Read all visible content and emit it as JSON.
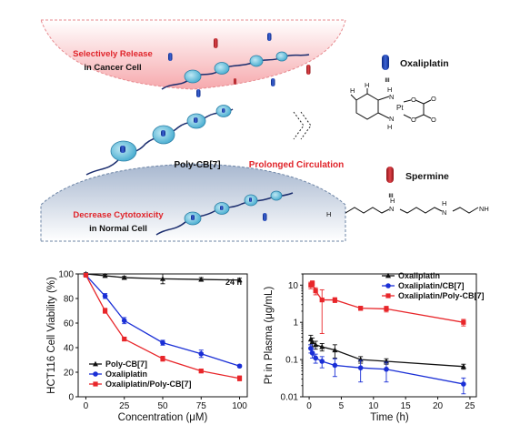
{
  "scheme": {
    "selective_release_line1": "Selectively Release",
    "selective_release_line2": "in Cancer Cell",
    "decrease_cytotoxicity_line1": "Decrease Cytotoxicity",
    "decrease_cytotoxicity_line2": "in Normal Cell",
    "poly_label": "Poly-CB[7]",
    "prolonged": "Prolonged Circulation",
    "oxaliplatin_label": "Oxaliplatin",
    "spermine_label": "Spermine",
    "equiv_symbol": "III",
    "pt": "Pt",
    "nh2": "NH",
    "h": "H",
    "o": "O",
    "n_h": "H",
    "n": "N",
    "h2n": "H",
    "colors": {
      "cancer": "#f7b6b9",
      "normal": "#b9c6d8",
      "oxali": "#1d3fa8",
      "spermine": "#c9262c",
      "cb7": "#6fc1de"
    }
  },
  "chart_data": [
    {
      "type": "line",
      "annotation": "24 h",
      "xlabel": "Concentration (μM)",
      "ylabel": "HCT116 Cell Viability (%)",
      "xlim": [
        -5,
        105
      ],
      "ylim": [
        0,
        100
      ],
      "xticks": [
        "0",
        "25",
        "50",
        "75",
        "100"
      ],
      "yticks": [
        "0",
        "20",
        "40",
        "60",
        "80",
        "100"
      ],
      "legend": "bottom-left",
      "series": [
        {
          "name": "Poly-CB[7]",
          "color": "#111111",
          "marker": "triangle",
          "x": [
            0,
            12.5,
            25,
            50,
            75,
            100
          ],
          "y": [
            100,
            98.5,
            97,
            96,
            95.5,
            95
          ],
          "err": [
            1,
            1,
            1,
            4,
            1.5,
            1.5
          ]
        },
        {
          "name": "Oxaliplatin",
          "color": "#1a2fd6",
          "marker": "circle",
          "x": [
            0,
            12.5,
            25,
            50,
            75,
            100
          ],
          "y": [
            99,
            82,
            62,
            44,
            35,
            25
          ],
          "err": [
            1,
            2,
            2.5,
            2,
            3,
            1
          ]
        },
        {
          "name": "Oxaliplatin/Poly-CB[7]",
          "color": "#e8262a",
          "marker": "square",
          "x": [
            0,
            12.5,
            25,
            50,
            75,
            100
          ],
          "y": [
            99,
            70,
            47,
            31,
            21,
            15
          ],
          "err": [
            1,
            2,
            1.5,
            2,
            1.5,
            2
          ]
        }
      ]
    },
    {
      "type": "line",
      "xlabel": "Time (h)",
      "ylabel": "Pt in Plasma (μg/mL)",
      "xscale": "linear",
      "yscale": "log",
      "xlim": [
        -1,
        26
      ],
      "ylim": [
        0.01,
        20
      ],
      "xticks": [
        "0",
        "5",
        "10",
        "15",
        "20",
        "25"
      ],
      "yticks": [
        "0.01",
        "0.1",
        "1",
        "10"
      ],
      "legend": "top-right",
      "series": [
        {
          "name": "Oxaliplatin",
          "color": "#111111",
          "marker": "triangle",
          "x": [
            0.25,
            0.5,
            1,
            2,
            4,
            8,
            12,
            24
          ],
          "y": [
            0.35,
            0.3,
            0.25,
            0.22,
            0.18,
            0.1,
            0.09,
            0.065
          ],
          "err": [
            0.1,
            0.08,
            0.06,
            0.05,
            0.07,
            0.02,
            0.015,
            0.01
          ]
        },
        {
          "name": "Oxaliplatin/CB[7]",
          "color": "#1a2fd6",
          "marker": "circle",
          "x": [
            0.25,
            0.5,
            1,
            2,
            4,
            8,
            12,
            24
          ],
          "y": [
            0.2,
            0.15,
            0.11,
            0.09,
            0.07,
            0.06,
            0.055,
            0.022
          ],
          "err": [
            0.05,
            0.04,
            0.03,
            0.03,
            0.035,
            0.035,
            0.03,
            0.01
          ]
        },
        {
          "name": "Oxaliplatin/Poly-CB[7]",
          "color": "#e8262a",
          "marker": "square",
          "x": [
            0.25,
            0.5,
            1,
            2,
            4,
            8,
            12,
            24
          ],
          "y": [
            10,
            11,
            7,
            4,
            4,
            2.4,
            2.3,
            1
          ],
          "err": [
            2,
            2,
            1.5,
            3.5,
            0.6,
            0.3,
            0.4,
            0.2
          ]
        }
      ]
    }
  ]
}
